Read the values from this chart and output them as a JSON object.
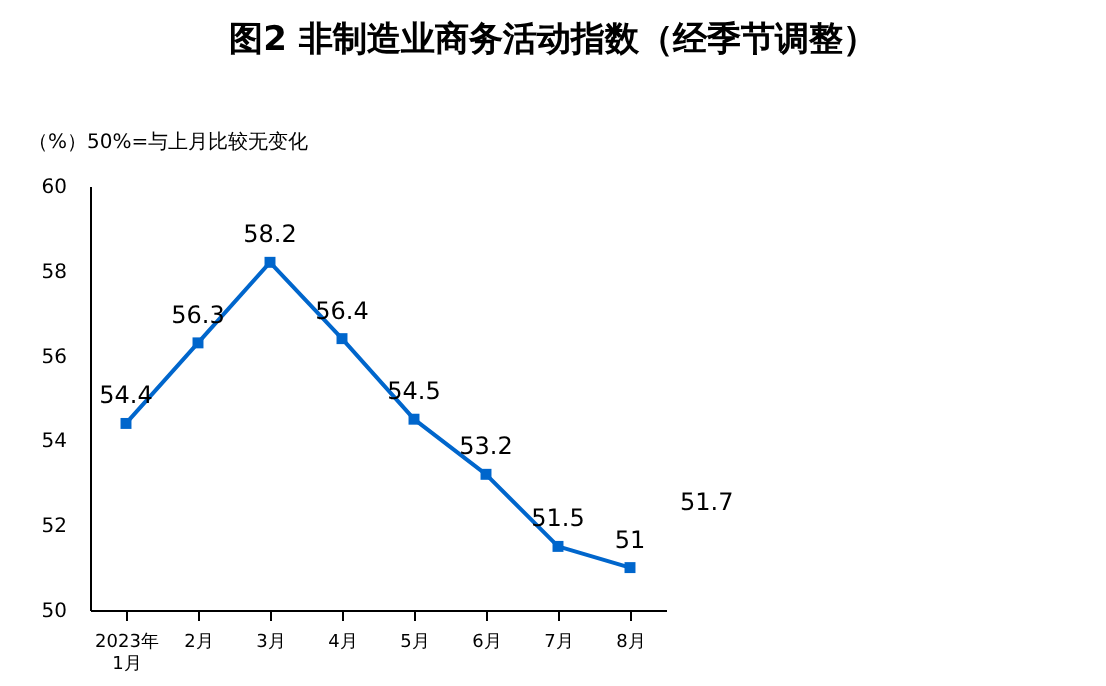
{
  "chart_data": {
    "type": "line",
    "title": "图2 非制造业商务活动指数（经季节调整）",
    "subtitle": "（%）50%=与上月比较无变化",
    "categories": [
      "2023年\n1月",
      "2月",
      "3月",
      "4月",
      "5月",
      "6月",
      "7月",
      "8月"
    ],
    "series": [
      {
        "color": "#0066cc",
        "values": [
          54.4,
          56.3,
          58.2,
          56.4,
          54.5,
          53.2,
          51.5,
          51.0
        ],
        "value_labels": [
          "54.4",
          "56.3",
          "58.2",
          "56.4",
          "54.5",
          "53.2",
          "51.5",
          "51"
        ]
      }
    ],
    "ylim": [
      50,
      60
    ],
    "yticks": [
      50,
      52,
      54,
      56,
      58,
      60
    ],
    "marker": "square",
    "annotations": [
      "51.7"
    ]
  }
}
